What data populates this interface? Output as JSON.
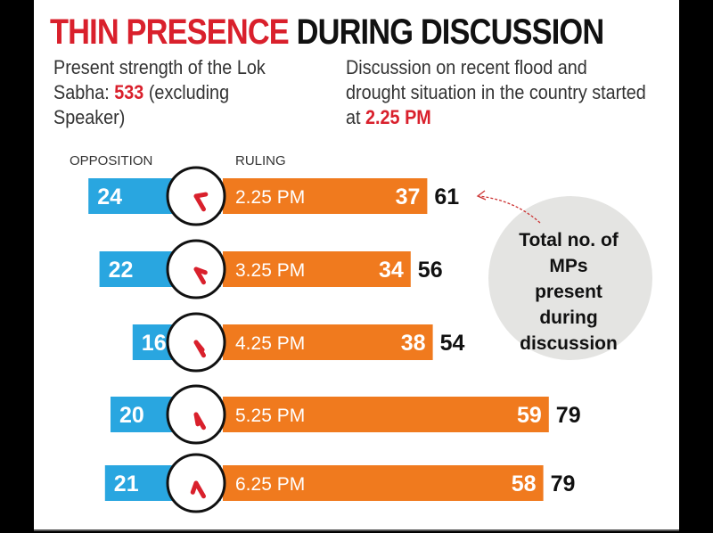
{
  "title": {
    "part1": "THIN PRESENCE",
    "part2": "DURING DISCUSSION"
  },
  "subtitle_left": {
    "text_before": "Present strength of the Lok Sabha:",
    "highlight": "533",
    "text_after": "(excluding Speaker)"
  },
  "subtitle_right": {
    "text_before": "Discussion on recent flood and drought situation in the country started at",
    "highlight": "2.25 PM"
  },
  "annotation": "Total no. of MPs present during discussion",
  "colors": {
    "opposition": "#29a6e0",
    "ruling": "#f07a1e",
    "accent": "#d9202c",
    "annotation_circle": "#e4e4e2"
  },
  "chart_data": {
    "type": "bar",
    "orientation": "horizontal-diverging",
    "categories": [
      "2.25 PM",
      "3.25 PM",
      "4.25 PM",
      "5.25 PM",
      "6.25 PM"
    ],
    "series": [
      {
        "name": "OPPOSITION",
        "values": [
          24,
          22,
          16,
          20,
          21
        ]
      },
      {
        "name": "RULING",
        "values": [
          37,
          34,
          38,
          59,
          58
        ]
      }
    ],
    "totals": [
      61,
      56,
      54,
      79,
      79
    ],
    "category_icon": "clock-icon"
  }
}
